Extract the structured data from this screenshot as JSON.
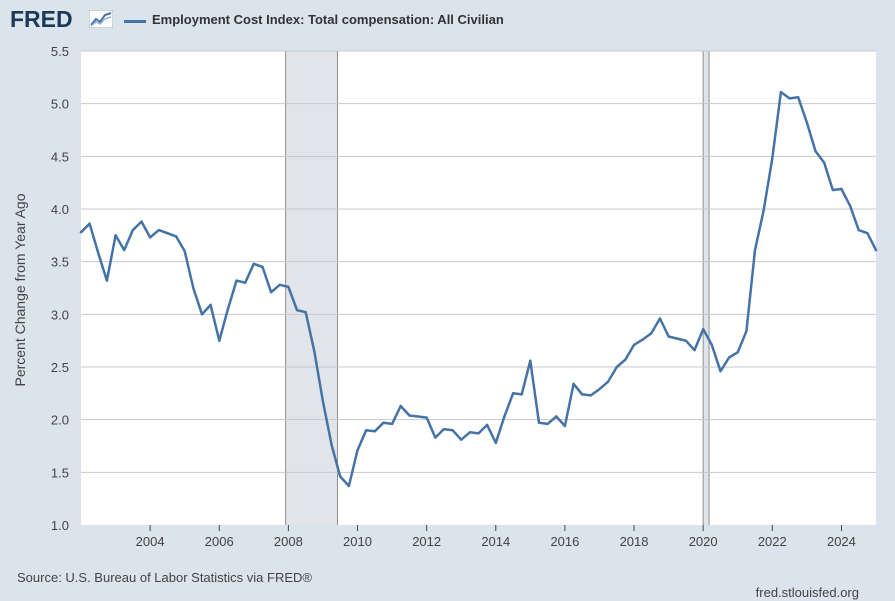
{
  "header": {
    "logo_text": "FRED"
  },
  "source_text": "Source: U.S. Bureau of Labor Statistics via FRED®",
  "site_text": "fred.stlouisfed.org",
  "colors": {
    "line": "#4573a7",
    "recession": "#e1e5ea",
    "grid": "#c8c8c8",
    "plot_bg": "#ffffff",
    "background": "#dbe3ec"
  },
  "chart_data": {
    "type": "line",
    "title": "",
    "xlabel": "",
    "ylabel": "Percent Change from Year Ago",
    "ylim": [
      1.0,
      5.5
    ],
    "xlim": [
      2002.0,
      2025.0
    ],
    "yticks": [
      "1.0",
      "1.5",
      "2.0",
      "2.5",
      "3.0",
      "3.5",
      "4.0",
      "4.5",
      "5.0",
      "5.5"
    ],
    "xticks": [
      "2004",
      "2006",
      "2008",
      "2010",
      "2012",
      "2014",
      "2016",
      "2018",
      "2020",
      "2022",
      "2024"
    ],
    "grid": "horizontal",
    "recessions": [
      [
        2007.92,
        2009.42
      ],
      [
        2020.0,
        2020.17
      ]
    ],
    "series": [
      {
        "name": "Employment Cost Index: Total compensation: All Civilian",
        "x": [
          2002.0,
          2002.25,
          2002.5,
          2002.75,
          2003.0,
          2003.25,
          2003.5,
          2003.75,
          2004.0,
          2004.25,
          2004.5,
          2004.75,
          2005.0,
          2005.25,
          2005.5,
          2005.75,
          2006.0,
          2006.25,
          2006.5,
          2006.75,
          2007.0,
          2007.25,
          2007.5,
          2007.75,
          2008.0,
          2008.25,
          2008.5,
          2008.75,
          2009.0,
          2009.25,
          2009.5,
          2009.75,
          2010.0,
          2010.25,
          2010.5,
          2010.75,
          2011.0,
          2011.25,
          2011.5,
          2011.75,
          2012.0,
          2012.25,
          2012.5,
          2012.75,
          2013.0,
          2013.25,
          2013.5,
          2013.75,
          2014.0,
          2014.25,
          2014.5,
          2014.75,
          2015.0,
          2015.25,
          2015.5,
          2015.75,
          2016.0,
          2016.25,
          2016.5,
          2016.75,
          2017.0,
          2017.25,
          2017.5,
          2017.75,
          2018.0,
          2018.25,
          2018.5,
          2018.75,
          2019.0,
          2019.25,
          2019.5,
          2019.75,
          2020.0,
          2020.25,
          2020.5,
          2020.75,
          2021.0,
          2021.25,
          2021.5,
          2021.75,
          2022.0,
          2022.25,
          2022.5,
          2022.75,
          2023.0,
          2023.25,
          2023.5,
          2023.75,
          2024.0,
          2024.25,
          2024.5,
          2024.75,
          2025.0
        ],
        "values": [
          3.78,
          3.86,
          3.58,
          3.32,
          3.75,
          3.61,
          3.8,
          3.88,
          3.73,
          3.8,
          3.77,
          3.74,
          3.6,
          3.25,
          3.0,
          3.09,
          2.75,
          3.05,
          3.32,
          3.3,
          3.48,
          3.45,
          3.21,
          3.28,
          3.26,
          3.04,
          3.02,
          2.65,
          2.17,
          1.76,
          1.46,
          1.37,
          1.71,
          1.9,
          1.89,
          1.97,
          1.96,
          2.13,
          2.04,
          2.03,
          2.02,
          1.83,
          1.91,
          1.9,
          1.81,
          1.88,
          1.87,
          1.95,
          1.78,
          2.03,
          2.25,
          2.24,
          2.56,
          1.97,
          1.96,
          2.03,
          1.94,
          2.34,
          2.24,
          2.23,
          2.29,
          2.36,
          2.5,
          2.57,
          2.71,
          2.76,
          2.82,
          2.96,
          2.79,
          2.77,
          2.75,
          2.66,
          2.86,
          2.71,
          2.46,
          2.59,
          2.64,
          2.84,
          3.61,
          3.99,
          4.48,
          5.11,
          5.05,
          5.06,
          4.82,
          4.55,
          4.44,
          4.18,
          4.19,
          4.03,
          3.8,
          3.77,
          3.61
        ]
      }
    ]
  }
}
